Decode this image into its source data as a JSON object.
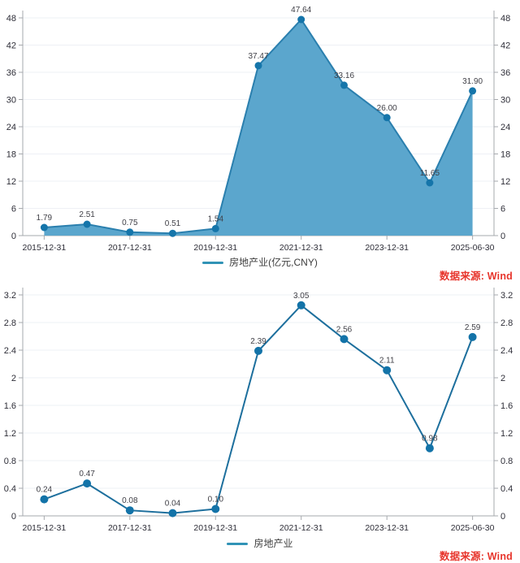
{
  "page": {
    "background": "#ffffff"
  },
  "palette": {
    "area_fill": "#5ba6cd",
    "area_edge": "#2a7fae",
    "area_marker": "#1575aa",
    "line_color": "#1d6f9d",
    "line_marker": "#1373a8",
    "legend_swatch": "#3193b6",
    "value_label_text": "#3f3f46",
    "tick_text": "#2e2e38",
    "axis_line": "#a6a9ad",
    "grid_line": "#eef0f5",
    "source_red": "#e7352c",
    "legend_text": "#3d3d3d"
  },
  "chart_data": [
    {
      "type": "area",
      "title": "",
      "legend": "房地产业(亿元,CNY)",
      "source": "数据来源: Wind",
      "x_tick_labels": [
        "2015-12-31",
        "2017-12-31",
        "2019-12-31",
        "2021-12-31",
        "2023-12-31",
        "2025-06-30"
      ],
      "x_label_indices": [
        0,
        2,
        4,
        6,
        8,
        10
      ],
      "values": [
        1.79,
        2.51,
        0.75,
        0.51,
        1.54,
        37.47,
        47.64,
        33.16,
        26.0,
        11.65,
        31.9
      ],
      "value_labels": [
        "1.79",
        "2.51",
        "0.75",
        "0.51",
        "1.54",
        "37.47",
        "47.64",
        "33.16",
        "26.00",
        "11.65",
        "31.90"
      ],
      "ylim": [
        0,
        48
      ],
      "ytick_step": 6,
      "y_tick_labels": [
        "0",
        "6",
        "12",
        "18",
        "24",
        "30",
        "36",
        "42",
        "48"
      ],
      "grid": true,
      "legend_position": "bottom-center",
      "y_axis_sides": "both"
    },
    {
      "type": "line",
      "title": "",
      "legend": "房地产业",
      "source": "数据来源: Wind",
      "x_tick_labels": [
        "2015-12-31",
        "2017-12-31",
        "2019-12-31",
        "2021-12-31",
        "2023-12-31",
        "2025-06-30"
      ],
      "x_label_indices": [
        0,
        2,
        4,
        6,
        8,
        10
      ],
      "values": [
        0.24,
        0.47,
        0.08,
        0.04,
        0.1,
        2.39,
        3.05,
        2.56,
        2.11,
        0.98,
        2.59
      ],
      "value_labels": [
        "0.24",
        "0.47",
        "0.08",
        "0.04",
        "0.10",
        "2.39",
        "3.05",
        "2.56",
        "2.11",
        "0.98",
        "2.59"
      ],
      "ylim": [
        0,
        3.2
      ],
      "ytick_step": 0.4,
      "y_tick_labels": [
        "0",
        "0.4",
        "0.8",
        "1.2",
        "1.6",
        "2",
        "2.4",
        "2.8",
        "3.2"
      ],
      "grid": true,
      "legend_position": "bottom-center",
      "y_axis_sides": "both"
    }
  ]
}
